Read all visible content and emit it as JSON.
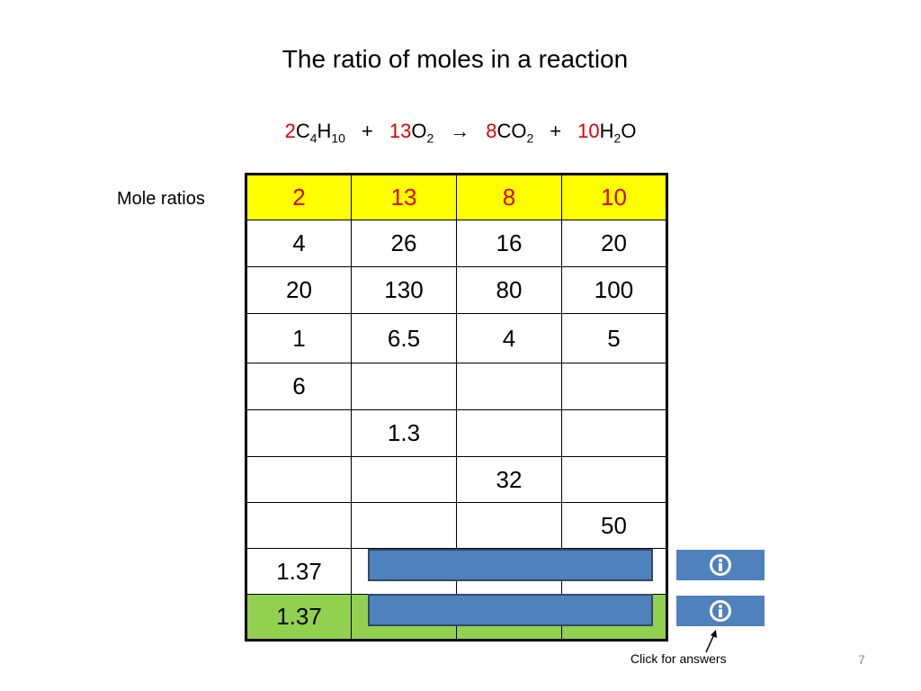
{
  "title": "The ratio of moles in a reaction",
  "equation": {
    "terms": [
      {
        "coef": "2",
        "parts": [
          {
            "t": "C",
            "sub": "4"
          },
          {
            "t": "H",
            "sub": "10"
          }
        ]
      },
      {
        "coef": "13",
        "parts": [
          {
            "t": "O",
            "sub": "2"
          }
        ]
      },
      {
        "coef": "8",
        "parts": [
          {
            "t": "CO",
            "sub": "2"
          }
        ]
      },
      {
        "coef": "10",
        "parts": [
          {
            "t": "H",
            "sub": "2"
          },
          {
            "t": "O"
          }
        ]
      }
    ],
    "ops": [
      "+",
      "→",
      "+"
    ]
  },
  "row_label": "Mole ratios",
  "table": {
    "rows": [
      [
        "2",
        "13",
        "8",
        "10"
      ],
      [
        "4",
        "26",
        "16",
        "20"
      ],
      [
        "20",
        "130",
        "80",
        "100"
      ],
      [
        "1",
        "6.5",
        "4",
        "5"
      ],
      [
        "6",
        null,
        null,
        null
      ],
      [
        null,
        "1.3",
        null,
        null
      ],
      [
        null,
        null,
        "32",
        null
      ],
      [
        null,
        null,
        null,
        "50"
      ],
      [
        "1.37",
        null,
        null,
        null
      ],
      [
        "1.37",
        null,
        null,
        null
      ]
    ]
  },
  "hint": "Click for answers",
  "page_number": "7"
}
